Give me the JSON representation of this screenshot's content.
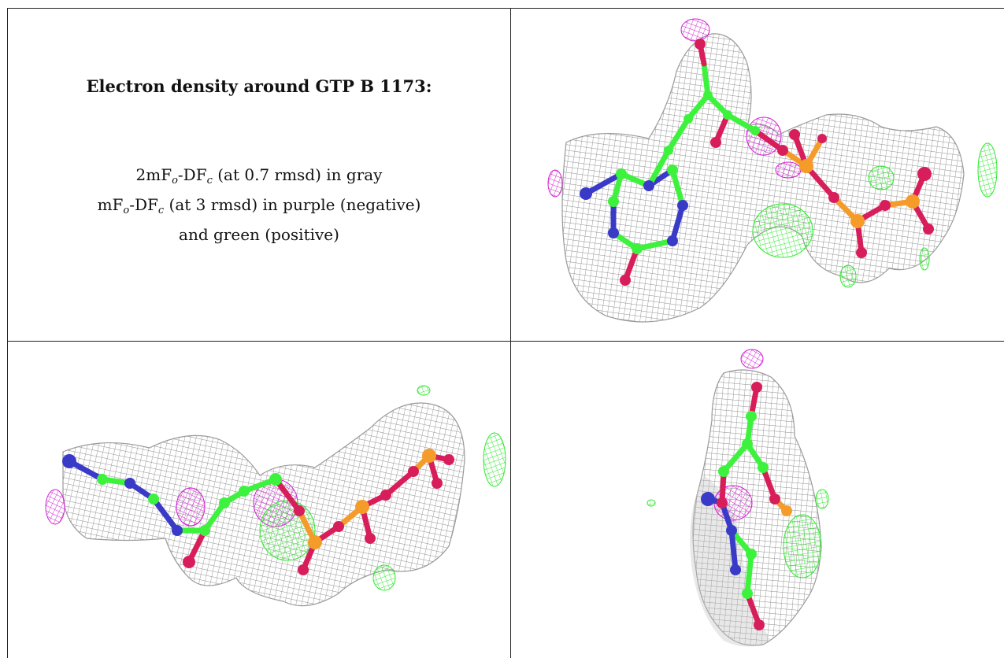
{
  "caption": {
    "title": "Electron density around GTP B 1173:",
    "line1": {
      "a": "2mF",
      "sub_o": "o",
      "b": "-DF",
      "sub_c": "c",
      "c": " (at 0.7 rmsd) in gray"
    },
    "line2": {
      "a": "mF",
      "sub_o": "o",
      "b": "-DF",
      "sub_c": "c",
      "c": " (at 3 rmsd) in purple (negative)"
    },
    "line3": "and green (positive)"
  },
  "colors": {
    "gray_mesh": "#8f8f8f",
    "negative_mesh": "#d21ed2",
    "positive_mesh": "#2ee82e",
    "carbon": "#3df23d",
    "nitrogen": "#3a3ac8",
    "oxygen": "#d81e5a",
    "phosphorus": "#f59b2a",
    "border": "#222222"
  },
  "panels": [
    {
      "name": "density-view-top-right"
    },
    {
      "name": "density-view-bottom-left"
    },
    {
      "name": "density-view-bottom-right"
    }
  ]
}
